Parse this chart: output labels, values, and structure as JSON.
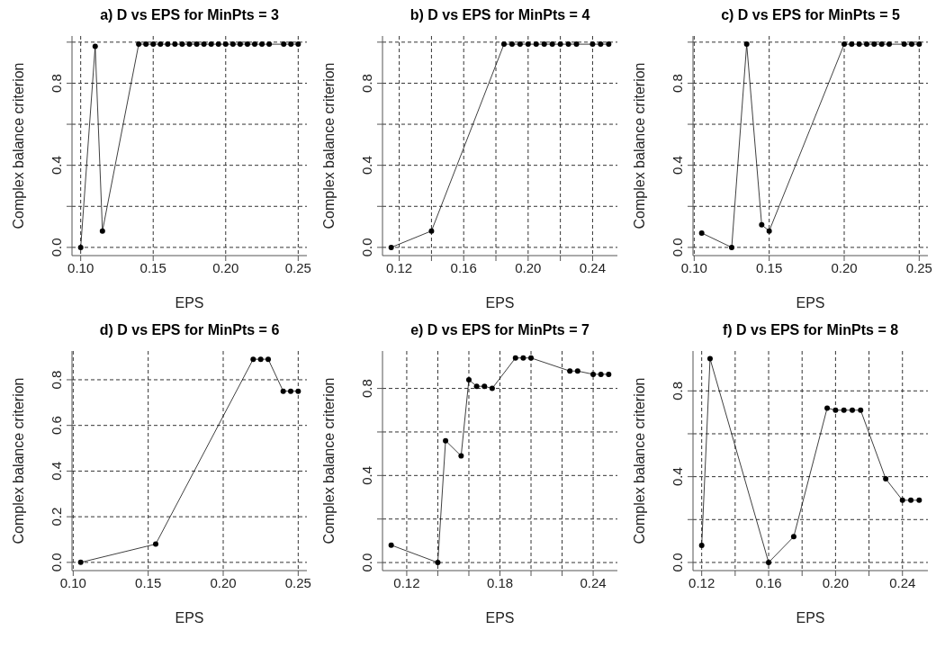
{
  "chart_data": [
    {
      "type": "line",
      "title": "a) D vs EPS for MinPts = 3",
      "xlabel": "EPS",
      "ylabel": "Complex balance criterion",
      "marker": "circle",
      "grid": true,
      "series": [
        {
          "color": "#000000",
          "x": [
            0.1,
            0.11,
            0.115,
            0.14,
            0.145,
            0.15,
            0.155,
            0.16,
            0.165,
            0.17,
            0.175,
            0.18,
            0.185,
            0.19,
            0.195,
            0.2,
            0.205,
            0.21,
            0.215,
            0.22,
            0.225,
            0.23,
            0.24,
            0.245,
            0.25
          ],
          "values": [
            0,
            0.98,
            0.08,
            0.99,
            0.99,
            0.99,
            0.99,
            0.99,
            0.99,
            0.99,
            0.99,
            0.99,
            0.99,
            0.99,
            0.99,
            0.99,
            0.99,
            0.99,
            0.99,
            0.99,
            0.99,
            0.99,
            0.99,
            0.99,
            0.99
          ]
        }
      ],
      "xlim": [
        0.094,
        0.256
      ],
      "xticks": [
        {
          "value": 0.1,
          "label": "0.10"
        },
        {
          "value": 0.15,
          "label": "0.15"
        },
        {
          "value": 0.2,
          "label": "0.20"
        },
        {
          "value": 0.25,
          "label": "0.25"
        }
      ],
      "ylim": [
        -0.04,
        1.03
      ],
      "yticks": [
        {
          "value": 0,
          "label": "0.0"
        },
        {
          "value": 0.2,
          "label": null
        },
        {
          "value": 0.4,
          "label": "0.4"
        },
        {
          "value": 0.6,
          "label": null
        },
        {
          "value": 0.8,
          "label": "0.8"
        },
        {
          "value": 1,
          "label": null
        }
      ]
    },
    {
      "type": "line",
      "title": "b) D vs EPS for MinPts = 4",
      "xlabel": "EPS",
      "ylabel": "Complex balance criterion",
      "marker": "circle",
      "grid": true,
      "series": [
        {
          "color": "#000000",
          "x": [
            0.115,
            0.14,
            0.185,
            0.19,
            0.195,
            0.2,
            0.205,
            0.21,
            0.215,
            0.22,
            0.225,
            0.23,
            0.24,
            0.245,
            0.25
          ],
          "values": [
            0,
            0.08,
            0.99,
            0.99,
            0.99,
            0.99,
            0.99,
            0.99,
            0.99,
            0.99,
            0.99,
            0.99,
            0.99,
            0.99,
            0.99
          ]
        }
      ],
      "xlim": [
        0.1096,
        0.2554
      ],
      "xticks": [
        {
          "value": 0.12,
          "label": "0.12"
        },
        {
          "value": 0.14,
          "label": null
        },
        {
          "value": 0.16,
          "label": "0.16"
        },
        {
          "value": 0.18,
          "label": null
        },
        {
          "value": 0.2,
          "label": "0.20"
        },
        {
          "value": 0.22,
          "label": null
        },
        {
          "value": 0.24,
          "label": "0.24"
        }
      ],
      "ylim": [
        -0.04,
        1.03
      ],
      "yticks": [
        {
          "value": 0,
          "label": "0.0"
        },
        {
          "value": 0.2,
          "label": null
        },
        {
          "value": 0.4,
          "label": "0.4"
        },
        {
          "value": 0.6,
          "label": null
        },
        {
          "value": 0.8,
          "label": "0.8"
        },
        {
          "value": 1,
          "label": null
        }
      ]
    },
    {
      "type": "line",
      "title": "c) D vs EPS for MinPts = 5",
      "xlabel": "EPS",
      "ylabel": "Complex balance criterion",
      "marker": "circle",
      "grid": true,
      "series": [
        {
          "color": "#000000",
          "x": [
            0.105,
            0.125,
            0.135,
            0.145,
            0.15,
            0.2,
            0.205,
            0.21,
            0.215,
            0.22,
            0.225,
            0.23,
            0.24,
            0.245,
            0.25
          ],
          "values": [
            0.07,
            0,
            0.99,
            0.11,
            0.08,
            0.99,
            0.99,
            0.99,
            0.99,
            0.99,
            0.99,
            0.99,
            0.99,
            0.99,
            0.99
          ]
        }
      ],
      "xlim": [
        0.0992,
        0.2558
      ],
      "xticks": [
        {
          "value": 0.1,
          "label": "0.10"
        },
        {
          "value": 0.15,
          "label": "0.15"
        },
        {
          "value": 0.2,
          "label": "0.20"
        },
        {
          "value": 0.25,
          "label": "0.25"
        }
      ],
      "ylim": [
        -0.04,
        1.03
      ],
      "yticks": [
        {
          "value": 0,
          "label": "0.0"
        },
        {
          "value": 0.2,
          "label": null
        },
        {
          "value": 0.4,
          "label": "0.4"
        },
        {
          "value": 0.6,
          "label": null
        },
        {
          "value": 0.8,
          "label": "0.8"
        },
        {
          "value": 1,
          "label": null
        }
      ]
    },
    {
      "type": "line",
      "title": "d) D vs EPS for MinPts = 6",
      "xlabel": "EPS",
      "ylabel": "Complex balance criterion",
      "marker": "circle",
      "grid": true,
      "series": [
        {
          "color": "#000000",
          "x": [
            0.105,
            0.155,
            0.22,
            0.225,
            0.23,
            0.24,
            0.245,
            0.25
          ],
          "values": [
            0,
            0.08,
            0.89,
            0.89,
            0.89,
            0.75,
            0.75,
            0.75
          ]
        }
      ],
      "xlim": [
        0.0992,
        0.2558
      ],
      "xticks": [
        {
          "value": 0.1,
          "label": "0.10"
        },
        {
          "value": 0.15,
          "label": "0.15"
        },
        {
          "value": 0.2,
          "label": "0.20"
        },
        {
          "value": 0.25,
          "label": "0.25"
        }
      ],
      "ylim": [
        -0.036,
        0.926
      ],
      "yticks": [
        {
          "value": 0,
          "label": "0.0"
        },
        {
          "value": 0.2,
          "label": "0.2"
        },
        {
          "value": 0.4,
          "label": "0.4"
        },
        {
          "value": 0.6,
          "label": "0.6"
        },
        {
          "value": 0.8,
          "label": "0.8"
        }
      ]
    },
    {
      "type": "line",
      "title": "e) D vs EPS for MinPts = 7",
      "xlabel": "EPS",
      "ylabel": "Complex balance criterion",
      "marker": "circle",
      "grid": true,
      "series": [
        {
          "color": "#000000",
          "x": [
            0.11,
            0.14,
            0.145,
            0.155,
            0.16,
            0.165,
            0.17,
            0.175,
            0.19,
            0.195,
            0.2,
            0.225,
            0.23,
            0.24,
            0.245,
            0.25
          ],
          "values": [
            0.08,
            0,
            0.56,
            0.49,
            0.84,
            0.81,
            0.81,
            0.8,
            0.94,
            0.94,
            0.94,
            0.88,
            0.88,
            0.865,
            0.865,
            0.865
          ]
        }
      ],
      "xlim": [
        0.1044,
        0.2556
      ],
      "xticks": [
        {
          "value": 0.12,
          "label": "0.12"
        },
        {
          "value": 0.14,
          "label": null
        },
        {
          "value": 0.16,
          "label": null
        },
        {
          "value": 0.18,
          "label": "0.18"
        },
        {
          "value": 0.2,
          "label": null
        },
        {
          "value": 0.22,
          "label": null
        },
        {
          "value": 0.24,
          "label": "0.24"
        }
      ],
      "ylim": [
        -0.037,
        0.972
      ],
      "yticks": [
        {
          "value": 0,
          "label": "0.0"
        },
        {
          "value": 0.2,
          "label": null
        },
        {
          "value": 0.4,
          "label": "0.4"
        },
        {
          "value": 0.6,
          "label": null
        },
        {
          "value": 0.8,
          "label": "0.8"
        }
      ]
    },
    {
      "type": "line",
      "title": "f) D vs EPS for MinPts = 8",
      "xlabel": "EPS",
      "ylabel": "Complex balance criterion",
      "marker": "circle",
      "grid": true,
      "series": [
        {
          "color": "#000000",
          "x": [
            0.12,
            0.125,
            0.16,
            0.175,
            0.195,
            0.2,
            0.205,
            0.21,
            0.215,
            0.23,
            0.24,
            0.245,
            0.25
          ],
          "values": [
            0.08,
            0.95,
            0,
            0.12,
            0.72,
            0.71,
            0.71,
            0.71,
            0.71,
            0.39,
            0.29,
            0.29,
            0.29
          ]
        }
      ],
      "xlim": [
        0.1148,
        0.2552
      ],
      "xticks": [
        {
          "value": 0.12,
          "label": "0.12"
        },
        {
          "value": 0.14,
          "label": null
        },
        {
          "value": 0.16,
          "label": "0.16"
        },
        {
          "value": 0.18,
          "label": null
        },
        {
          "value": 0.2,
          "label": "0.20"
        },
        {
          "value": 0.22,
          "label": null
        },
        {
          "value": 0.24,
          "label": "0.24"
        }
      ],
      "ylim": [
        -0.038,
        0.986
      ],
      "yticks": [
        {
          "value": 0,
          "label": "0.0"
        },
        {
          "value": 0.2,
          "label": null
        },
        {
          "value": 0.4,
          "label": "0.4"
        },
        {
          "value": 0.6,
          "label": null
        },
        {
          "value": 0.8,
          "label": "0.8"
        }
      ]
    }
  ]
}
